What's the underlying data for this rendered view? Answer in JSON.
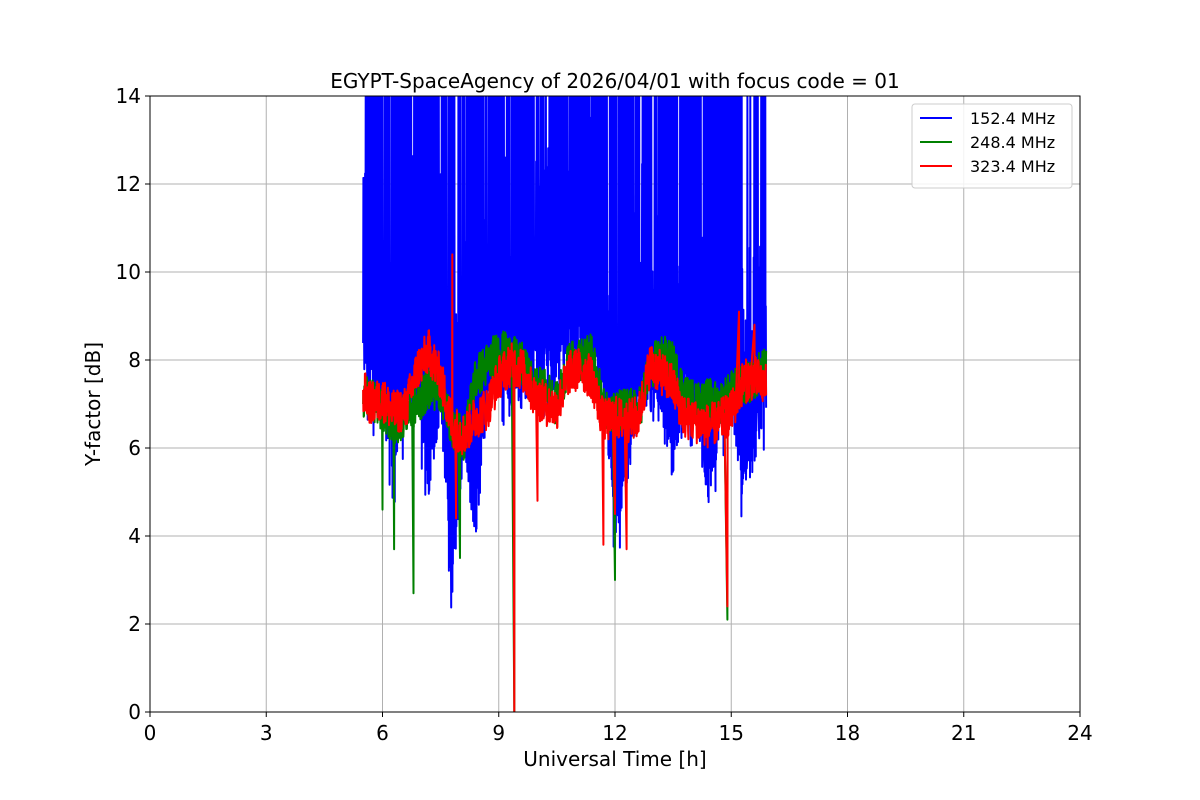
{
  "chart_data": {
    "type": "line",
    "title": "EGYPT-SpaceAgency of 2026/04/01 with focus code = 01",
    "xlabel": "Universal Time [h]",
    "ylabel": "Y-factor [dB]",
    "xlim": [
      0,
      24
    ],
    "ylim": [
      0,
      14
    ],
    "xticks": [
      0,
      3,
      6,
      9,
      12,
      15,
      18,
      21,
      24
    ],
    "yticks": [
      0,
      2,
      4,
      6,
      8,
      10,
      12,
      14
    ],
    "grid": true,
    "legend_position": "top-right",
    "series": [
      {
        "name": "152.4 MHz",
        "color": "#0000ff",
        "x": [
          5.5,
          5.7,
          6.0,
          6.3,
          6.6,
          6.9,
          7.2,
          7.5,
          7.8,
          8.1,
          8.4,
          8.7,
          9.0,
          9.3,
          9.6,
          9.9,
          10.2,
          10.5,
          10.8,
          11.1,
          11.4,
          11.7,
          12.0,
          12.3,
          12.6,
          12.9,
          13.2,
          13.5,
          13.8,
          14.1,
          14.4,
          14.7,
          15.0,
          15.3,
          15.6,
          15.9
        ],
        "y_min": [
          7.0,
          6.4,
          5.9,
          4.7,
          6.1,
          6.3,
          4.3,
          6.2,
          2.0,
          5.3,
          3.2,
          6.2,
          6.9,
          6.0,
          6.3,
          6.8,
          6.7,
          6.6,
          7.1,
          7.2,
          7.0,
          6.3,
          3.4,
          4.2,
          6.2,
          6.1,
          5.8,
          4.6,
          6.0,
          6.1,
          3.8,
          5.7,
          6.1,
          4.2,
          5.0,
          6.2
        ],
        "y_max": [
          14.0,
          14.0,
          14.0,
          14.0,
          14.0,
          14.0,
          14.0,
          14.0,
          14.0,
          14.0,
          14.0,
          14.0,
          14.0,
          14.0,
          14.0,
          14.0,
          14.0,
          14.0,
          14.0,
          14.0,
          14.0,
          14.0,
          14.0,
          14.0,
          14.0,
          14.0,
          14.0,
          14.0,
          14.0,
          14.0,
          14.0,
          14.0,
          14.0,
          14.0,
          14.0,
          14.0
        ]
      },
      {
        "name": "248.4 MHz",
        "color": "#008000",
        "x": [
          5.5,
          5.7,
          6.0,
          6.3,
          6.6,
          6.9,
          7.2,
          7.5,
          7.8,
          8.1,
          8.4,
          8.7,
          9.0,
          9.3,
          9.6,
          9.9,
          10.2,
          10.5,
          10.8,
          11.1,
          11.4,
          11.7,
          12.0,
          12.3,
          12.6,
          12.9,
          13.2,
          13.5,
          13.8,
          14.1,
          14.4,
          14.7,
          15.0,
          15.3,
          15.6,
          15.9
        ],
        "y": [
          7.2,
          7.1,
          6.9,
          6.5,
          6.8,
          7.0,
          7.4,
          7.3,
          6.5,
          6.2,
          7.6,
          7.9,
          8.2,
          8.1,
          7.9,
          7.4,
          7.3,
          7.0,
          7.9,
          8.0,
          8.1,
          6.9,
          6.8,
          6.9,
          6.8,
          7.8,
          8.1,
          7.9,
          7.2,
          7.0,
          7.1,
          7.0,
          7.3,
          7.4,
          7.6,
          7.8
        ],
        "spikes": [
          [
            6.0,
            4.6
          ],
          [
            6.3,
            3.7
          ],
          [
            6.8,
            2.7
          ],
          [
            8.0,
            3.5
          ],
          [
            12.0,
            3.0
          ],
          [
            14.9,
            2.1
          ],
          [
            9.4,
            0.0
          ]
        ]
      },
      {
        "name": "323.4 MHz",
        "color": "#ff0000",
        "x": [
          5.5,
          5.7,
          6.0,
          6.3,
          6.6,
          6.9,
          7.2,
          7.5,
          7.8,
          8.1,
          8.4,
          8.7,
          9.0,
          9.3,
          9.6,
          9.9,
          10.2,
          10.5,
          10.8,
          11.1,
          11.4,
          11.7,
          12.0,
          12.3,
          12.6,
          12.9,
          13.2,
          13.5,
          13.8,
          14.1,
          14.4,
          14.7,
          15.0,
          15.3,
          15.6,
          15.9
        ],
        "y": [
          7.3,
          7.0,
          7.1,
          6.8,
          6.9,
          7.8,
          8.2,
          7.6,
          6.5,
          6.3,
          6.7,
          6.9,
          7.6,
          7.9,
          7.8,
          7.2,
          7.0,
          6.9,
          7.7,
          7.8,
          7.6,
          6.6,
          6.7,
          6.6,
          6.7,
          7.9,
          7.7,
          7.4,
          6.7,
          6.6,
          6.5,
          6.6,
          6.8,
          7.5,
          7.6,
          7.4
        ],
        "spikes": [
          [
            7.8,
            10.4
          ],
          [
            9.4,
            0.0
          ],
          [
            11.7,
            3.8
          ],
          [
            12.3,
            3.7
          ],
          [
            14.9,
            2.4
          ],
          [
            15.2,
            9.1
          ],
          [
            15.6,
            8.8
          ],
          [
            12.0,
            4.5
          ],
          [
            10.0,
            4.8
          ],
          [
            7.9,
            4.4
          ]
        ]
      }
    ]
  }
}
